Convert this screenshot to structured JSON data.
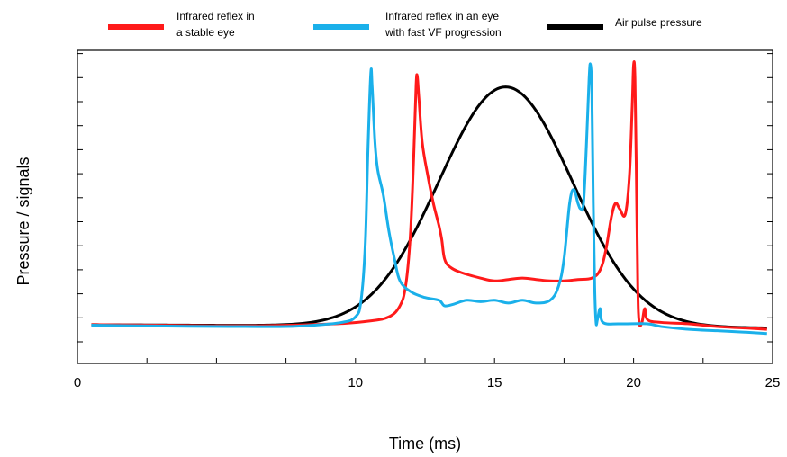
{
  "chart_data": {
    "type": "line",
    "title": "",
    "xlabel": "Time (ms)",
    "ylabel": "Pressure / signals",
    "xlim": [
      0,
      25
    ],
    "ylim": [
      0,
      1
    ],
    "x_ticks": [
      "0",
      "10",
      "15",
      "20",
      "25"
    ],
    "grid": false,
    "legend_position": "top",
    "series": [
      {
        "name": "Infrared reflex in a stable eye",
        "color": "#ff1a1a",
        "points": [
          [
            0.5,
            0.062
          ],
          [
            2,
            0.061
          ],
          [
            4,
            0.059
          ],
          [
            6,
            0.058
          ],
          [
            8,
            0.061
          ],
          [
            9.5,
            0.066
          ],
          [
            10.5,
            0.075
          ],
          [
            11.2,
            0.09
          ],
          [
            11.6,
            0.13
          ],
          [
            11.8,
            0.2
          ],
          [
            11.95,
            0.35
          ],
          [
            12.05,
            0.55
          ],
          [
            12.12,
            0.75
          ],
          [
            12.18,
            0.93
          ],
          [
            12.22,
            0.96
          ],
          [
            12.28,
            0.88
          ],
          [
            12.4,
            0.72
          ],
          [
            12.6,
            0.6
          ],
          [
            12.8,
            0.5
          ],
          [
            13.0,
            0.42
          ],
          [
            13.1,
            0.37
          ],
          [
            13.2,
            0.3
          ],
          [
            13.4,
            0.27
          ],
          [
            13.8,
            0.25
          ],
          [
            14.5,
            0.23
          ],
          [
            15.0,
            0.22
          ],
          [
            15.5,
            0.225
          ],
          [
            16.0,
            0.23
          ],
          [
            16.5,
            0.225
          ],
          [
            17.0,
            0.22
          ],
          [
            17.5,
            0.22
          ],
          [
            18.0,
            0.225
          ],
          [
            18.5,
            0.23
          ],
          [
            18.8,
            0.26
          ],
          [
            19.0,
            0.33
          ],
          [
            19.2,
            0.45
          ],
          [
            19.35,
            0.5
          ],
          [
            19.5,
            0.48
          ],
          [
            19.7,
            0.46
          ],
          [
            19.85,
            0.6
          ],
          [
            19.95,
            0.85
          ],
          [
            20.0,
            1.0
          ],
          [
            20.05,
            0.95
          ],
          [
            20.1,
            0.6
          ],
          [
            20.15,
            0.2
          ],
          [
            20.2,
            0.07
          ],
          [
            20.3,
            0.07
          ],
          [
            20.4,
            0.12
          ],
          [
            20.5,
            0.08
          ],
          [
            21,
            0.07
          ],
          [
            22,
            0.065
          ],
          [
            23,
            0.055
          ],
          [
            24,
            0.05
          ],
          [
            24.8,
            0.045
          ]
        ]
      },
      {
        "name": "Infrared reflex in an eye with fast VF progression",
        "color": "#1ab0ea",
        "points": [
          [
            0.5,
            0.06
          ],
          [
            2,
            0.058
          ],
          [
            4,
            0.056
          ],
          [
            6,
            0.055
          ],
          [
            7.5,
            0.055
          ],
          [
            8.5,
            0.06
          ],
          [
            9.5,
            0.07
          ],
          [
            10.0,
            0.09
          ],
          [
            10.2,
            0.15
          ],
          [
            10.35,
            0.35
          ],
          [
            10.45,
            0.7
          ],
          [
            10.55,
            0.97
          ],
          [
            10.6,
            0.92
          ],
          [
            10.7,
            0.72
          ],
          [
            10.8,
            0.62
          ],
          [
            11.0,
            0.53
          ],
          [
            11.2,
            0.4
          ],
          [
            11.4,
            0.3
          ],
          [
            11.6,
            0.22
          ],
          [
            12.0,
            0.18
          ],
          [
            12.5,
            0.16
          ],
          [
            13.0,
            0.15
          ],
          [
            13.2,
            0.13
          ],
          [
            13.5,
            0.135
          ],
          [
            14.0,
            0.15
          ],
          [
            14.5,
            0.145
          ],
          [
            15.0,
            0.15
          ],
          [
            15.5,
            0.14
          ],
          [
            16.0,
            0.15
          ],
          [
            16.5,
            0.14
          ],
          [
            17.0,
            0.15
          ],
          [
            17.3,
            0.2
          ],
          [
            17.5,
            0.3
          ],
          [
            17.7,
            0.5
          ],
          [
            17.85,
            0.55
          ],
          [
            18.0,
            0.5
          ],
          [
            18.1,
            0.48
          ],
          [
            18.2,
            0.5
          ],
          [
            18.3,
            0.7
          ],
          [
            18.4,
            0.95
          ],
          [
            18.45,
            1.0
          ],
          [
            18.5,
            0.9
          ],
          [
            18.55,
            0.5
          ],
          [
            18.6,
            0.2
          ],
          [
            18.65,
            0.07
          ],
          [
            18.7,
            0.08
          ],
          [
            18.8,
            0.12
          ],
          [
            18.9,
            0.07
          ],
          [
            19.5,
            0.065
          ],
          [
            20.5,
            0.065
          ],
          [
            21,
            0.055
          ],
          [
            22,
            0.045
          ],
          [
            23,
            0.04
          ],
          [
            24,
            0.035
          ],
          [
            24.8,
            0.03
          ]
        ]
      },
      {
        "name": "Air pulse pressure",
        "color": "#000000",
        "type": "gaussian",
        "peak_x": 15.4,
        "peak_y": 0.92,
        "baseline": 0.062,
        "sigma": 2.4,
        "x_range": [
          0.5,
          24.8
        ],
        "baseline_end": 0.05
      }
    ]
  },
  "legend": [
    {
      "line1": "Infrared reflex in",
      "line2": "a stable eye",
      "color": "#ff1a1a"
    },
    {
      "line1": "Infrared reflex in an eye",
      "line2": "with fast VF progression",
      "color": "#1ab0ea"
    },
    {
      "line1": "Air pulse pressure",
      "line2": "",
      "color": "#000000"
    }
  ]
}
